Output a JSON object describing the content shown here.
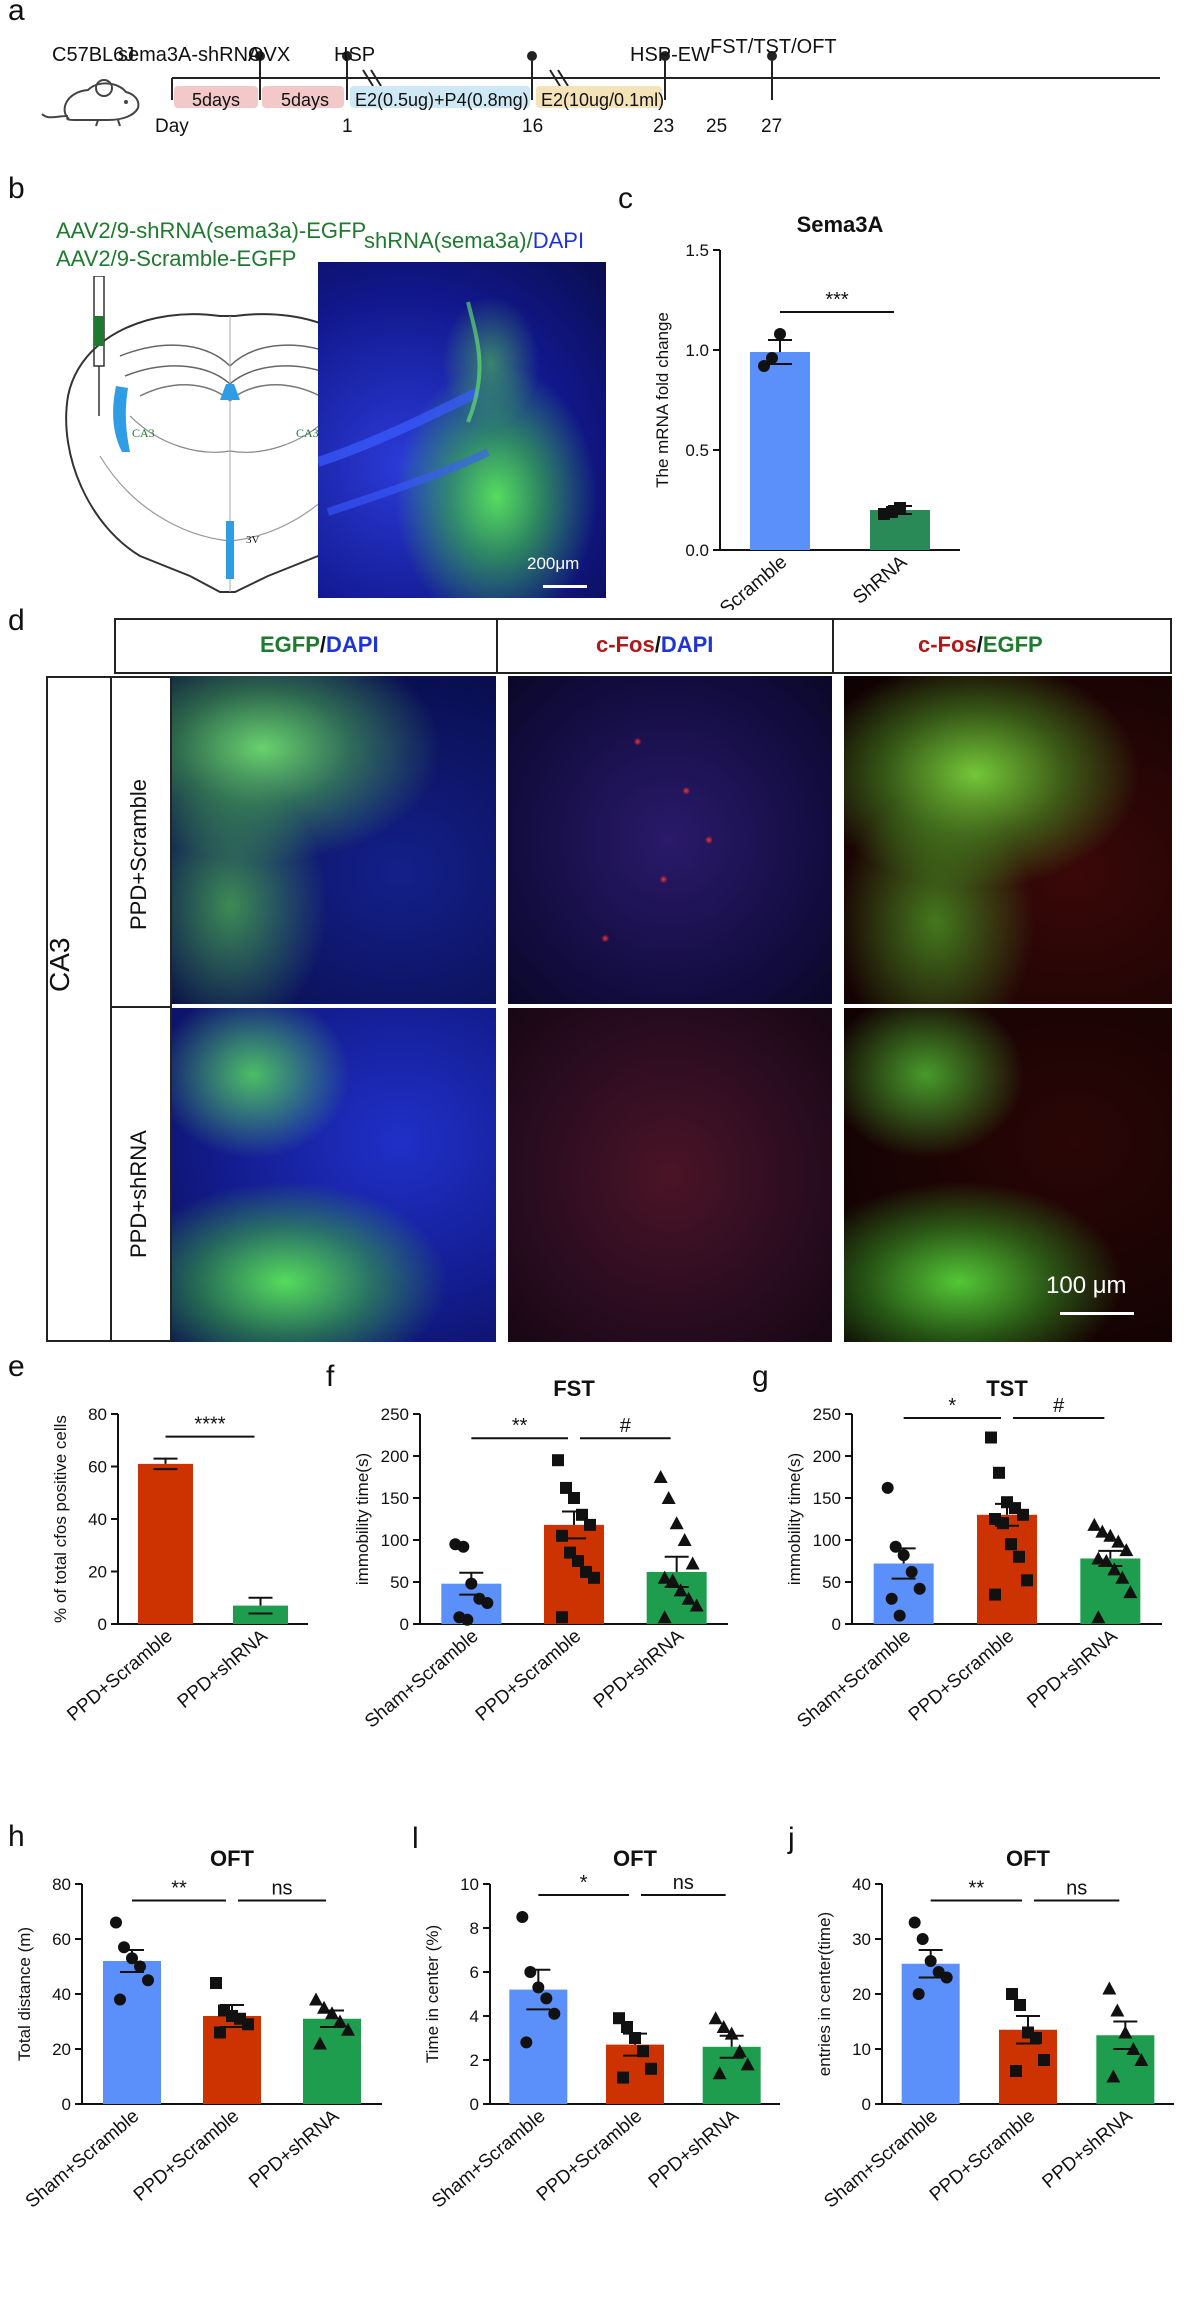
{
  "panel_letters": {
    "a": "a",
    "b": "b",
    "c": "c",
    "d": "d",
    "e": "e",
    "f": "f",
    "g": "g",
    "h": "h",
    "i": "l",
    "j": "j"
  },
  "timeline": {
    "strain": "C57BL6J",
    "events_top": [
      "sema3A-shRNA",
      "OVX",
      "HSP",
      "HSP-EW",
      "FST/TST/OFT"
    ],
    "boxes": [
      "5days",
      "5days",
      "E2(0.5ug)+P4(0.8mg)",
      "E2(10ug/0.1ml)"
    ],
    "day_prefix": "Day",
    "days": [
      "1",
      "16",
      "23",
      "25",
      "27"
    ]
  },
  "panel_b": {
    "virus_1": "AAV2/9-shRNA(sema3a)-EGFP",
    "virus_2": "AAV2/9-Scramble-EGFP",
    "atlas_labels": [
      "CA3",
      "CA3",
      "3V"
    ],
    "image_title_part1": "shRNA(sema3a)/",
    "image_title_part2": "DAPI",
    "scale_bar": "200μm"
  },
  "panel_d": {
    "col_headers": [
      {
        "a": "EGFP",
        "sep": "/",
        "b": "DAPI"
      },
      {
        "a": "c-Fos",
        "sep": "/",
        "b": "DAPI"
      },
      {
        "a": "c-Fos",
        "sep": "/",
        "b": "EGFP"
      }
    ],
    "region": "CA3",
    "rows": [
      "PPD+Scramble",
      "PPD+shRNA"
    ],
    "scale_bar": "100 μm"
  },
  "colors": {
    "blue": "#5b8ff9",
    "red": "#cc3300",
    "green": "#1f9d4e",
    "dark_green": "#2a8a57"
  },
  "chart_data": [
    {
      "id": "c",
      "type": "bar",
      "title": "Sema3A",
      "ylabel": "The mRNA fold change",
      "categories": [
        "Scramble",
        "ShRNA"
      ],
      "values": [
        0.99,
        0.2
      ],
      "errors": [
        0.06,
        0.02
      ],
      "ylim": [
        0,
        1.5
      ],
      "yticks": [
        "0.0",
        "0.5",
        "1.0",
        "1.5"
      ],
      "colors": [
        "#5b8ff9",
        "#2a8a57"
      ],
      "points": [
        [
          0.92,
          0.96,
          1.08
        ],
        [
          0.18,
          0.19,
          0.21
        ]
      ],
      "markers": [
        "circle",
        "square"
      ],
      "sig": [
        {
          "from": 0,
          "to": 1,
          "label": "***"
        }
      ]
    },
    {
      "id": "e",
      "type": "bar",
      "title": "",
      "ylabel": "% of total cfos positive cells",
      "categories": [
        "PPD+Scramble",
        "PPD+shRNA"
      ],
      "values": [
        61,
        7
      ],
      "errors": [
        2,
        3
      ],
      "ylim": [
        0,
        80
      ],
      "yticks": [
        "0",
        "20",
        "40",
        "60",
        "80"
      ],
      "colors": [
        "#cc3300",
        "#1f9d4e"
      ],
      "points": [],
      "markers": [],
      "sig": [
        {
          "from": 0,
          "to": 1,
          "label": "****"
        }
      ]
    },
    {
      "id": "f",
      "type": "bar",
      "title": "FST",
      "ylabel": "immobility time(s)",
      "categories": [
        "Sham+Scramble",
        "PPD+Scramble",
        "PPD+shRNA"
      ],
      "values": [
        48,
        118,
        62
      ],
      "errors": [
        13,
        16,
        18
      ],
      "ylim": [
        0,
        250
      ],
      "yticks": [
        "0",
        "50",
        "100",
        "150",
        "200",
        "250"
      ],
      "colors": [
        "#5b8ff9",
        "#cc3300",
        "#1f9d4e"
      ],
      "points": [
        [
          95,
          92,
          48,
          30,
          25,
          8,
          5
        ],
        [
          195,
          162,
          150,
          130,
          118,
          105,
          85,
          75,
          62,
          55,
          8
        ],
        [
          175,
          150,
          120,
          100,
          72,
          55,
          52,
          40,
          30,
          22,
          8
        ]
      ],
      "markers": [
        "circle",
        "square",
        "triangle"
      ],
      "sig": [
        {
          "from": 0,
          "to": 1,
          "label": "**"
        },
        {
          "from": 1,
          "to": 2,
          "label": "#"
        }
      ]
    },
    {
      "id": "g",
      "type": "bar",
      "title": "TST",
      "ylabel": "immobility time(s)",
      "categories": [
        "Sham+Scramble",
        "PPD+Scramble",
        "PPD+shRNA"
      ],
      "values": [
        72,
        130,
        78
      ],
      "errors": [
        18,
        13,
        9
      ],
      "ylim": [
        0,
        250
      ],
      "yticks": [
        "0",
        "50",
        "100",
        "150",
        "200",
        "250"
      ],
      "colors": [
        "#5b8ff9",
        "#cc3300",
        "#1f9d4e"
      ],
      "points": [
        [
          162,
          92,
          82,
          62,
          42,
          30,
          10
        ],
        [
          222,
          180,
          145,
          138,
          130,
          125,
          120,
          95,
          80,
          52,
          35
        ],
        [
          118,
          110,
          105,
          98,
          88,
          78,
          75,
          65,
          55,
          38,
          8
        ]
      ],
      "markers": [
        "circle",
        "square",
        "triangle"
      ],
      "sig": [
        {
          "from": 0,
          "to": 1,
          "label": "*"
        },
        {
          "from": 1,
          "to": 2,
          "label": "#"
        }
      ]
    },
    {
      "id": "h",
      "type": "bar",
      "title": "OFT",
      "ylabel": "Total distance (m)",
      "categories": [
        "Sham+Scramble",
        "PPD+Scramble",
        "PPD+shRNA"
      ],
      "values": [
        52,
        32,
        31
      ],
      "errors": [
        4,
        4,
        3
      ],
      "ylim": [
        0,
        80
      ],
      "yticks": [
        "0",
        "20",
        "40",
        "60",
        "80"
      ],
      "colors": [
        "#5b8ff9",
        "#cc3300",
        "#1f9d4e"
      ],
      "points": [
        [
          66,
          57,
          53,
          50,
          45,
          38
        ],
        [
          44,
          34,
          32,
          31,
          29,
          26
        ],
        [
          38,
          35,
          33,
          30,
          27,
          22
        ]
      ],
      "markers": [
        "circle",
        "square",
        "triangle"
      ],
      "sig": [
        {
          "from": 0,
          "to": 1,
          "label": "**"
        },
        {
          "from": 1,
          "to": 2,
          "label": "ns"
        }
      ]
    },
    {
      "id": "i",
      "type": "bar",
      "title": "OFT",
      "ylabel": "Time in center (%)",
      "categories": [
        "Sham+Scramble",
        "PPD+Scramble",
        "PPD+shRNA"
      ],
      "values": [
        5.2,
        2.7,
        2.6
      ],
      "errors": [
        0.9,
        0.5,
        0.5
      ],
      "ylim": [
        0,
        10
      ],
      "yticks": [
        "0",
        "2",
        "4",
        "6",
        "8",
        "10"
      ],
      "colors": [
        "#5b8ff9",
        "#cc3300",
        "#1f9d4e"
      ],
      "points": [
        [
          8.5,
          6.0,
          5.3,
          4.8,
          4.1,
          2.8
        ],
        [
          3.9,
          3.5,
          3.0,
          2.4,
          1.6,
          1.2
        ],
        [
          3.9,
          3.5,
          3.2,
          2.4,
          1.8,
          1.4
        ]
      ],
      "markers": [
        "circle",
        "square",
        "triangle"
      ],
      "sig": [
        {
          "from": 0,
          "to": 1,
          "label": "*"
        },
        {
          "from": 1,
          "to": 2,
          "label": "ns"
        }
      ]
    },
    {
      "id": "j",
      "type": "bar",
      "title": "OFT",
      "ylabel": "entries in center(time)",
      "categories": [
        "Sham+Scramble",
        "PPD+Scramble",
        "PPD+shRNA"
      ],
      "values": [
        25.5,
        13.5,
        12.5
      ],
      "errors": [
        2.5,
        2.5,
        2.5
      ],
      "ylim": [
        0,
        40
      ],
      "yticks": [
        "0",
        "10",
        "20",
        "30",
        "40"
      ],
      "colors": [
        "#5b8ff9",
        "#cc3300",
        "#1f9d4e"
      ],
      "points": [
        [
          33,
          30,
          26,
          24,
          23,
          20
        ],
        [
          20,
          18,
          13,
          12,
          8,
          6
        ],
        [
          21,
          17,
          13,
          10,
          8,
          5
        ]
      ],
      "markers": [
        "circle",
        "square",
        "triangle"
      ],
      "sig": [
        {
          "from": 0,
          "to": 1,
          "label": "**"
        },
        {
          "from": 1,
          "to": 2,
          "label": "ns"
        }
      ]
    }
  ]
}
